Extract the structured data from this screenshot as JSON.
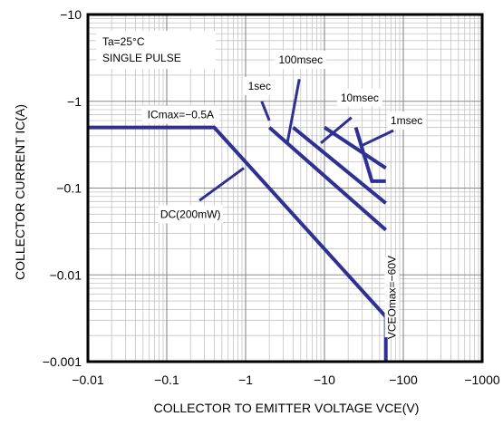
{
  "chart_data": {
    "type": "line",
    "title": "",
    "xlabel": "COLLECTOR TO EMITTER VOLTAGE VCE(V)",
    "ylabel": "COLLECTOR CURRENT IC(A)",
    "x_scale": "log",
    "y_scale": "log",
    "xlim": [
      -0.01,
      -1000
    ],
    "ylim": [
      -0.001,
      -10
    ],
    "x_ticks": [
      -0.01,
      -0.1,
      -1,
      -10,
      -100,
      -1000
    ],
    "x_tick_labels": [
      "−0.01",
      "−0.1",
      "−1",
      "−10",
      "−100",
      "−1000"
    ],
    "y_ticks": [
      -0.001,
      -0.01,
      -0.1,
      -1,
      -10
    ],
    "y_tick_labels": [
      "−0.001",
      "−0.01",
      "−0.1",
      "−1",
      "−10"
    ],
    "grid": true,
    "conditions": [
      "Ta=25°C",
      "SINGLE PULSE"
    ],
    "series": [
      {
        "name": "DC(200mW)",
        "x": [
          -0.01,
          -0.4,
          -60,
          -60
        ],
        "y": [
          -0.5,
          -0.5,
          -0.0033,
          -0.001
        ]
      },
      {
        "name": "1sec",
        "x": [
          -2,
          -60
        ],
        "y": [
          -0.5,
          -0.033
        ]
      },
      {
        "name": "100msec",
        "x": [
          -4,
          -60
        ],
        "y": [
          -0.5,
          -0.067
        ]
      },
      {
        "name": "10msec",
        "x": [
          -10,
          -60
        ],
        "y": [
          -0.5,
          -0.17
        ]
      },
      {
        "name": "1msec",
        "x": [
          -25,
          -40,
          -60
        ],
        "y": [
          -0.5,
          -0.12,
          -0.12
        ]
      }
    ],
    "annotations": [
      {
        "text": "ICmax=−0.5A",
        "x": -0.15,
        "y": -0.7
      },
      {
        "text": "VCEOmax=−60V",
        "x": -70,
        "y": -0.0055
      },
      {
        "text": "DC(200mW)",
        "x": -0.2,
        "y": -0.05
      },
      {
        "text": "1sec",
        "x": -1.5,
        "y": -1.5
      },
      {
        "text": "100msec",
        "x": -5,
        "y": -3
      },
      {
        "text": "10msec",
        "x": -28,
        "y": -1.1
      },
      {
        "text": "1msec",
        "x": -110,
        "y": -0.6
      }
    ],
    "series_color": "#2e3192"
  }
}
